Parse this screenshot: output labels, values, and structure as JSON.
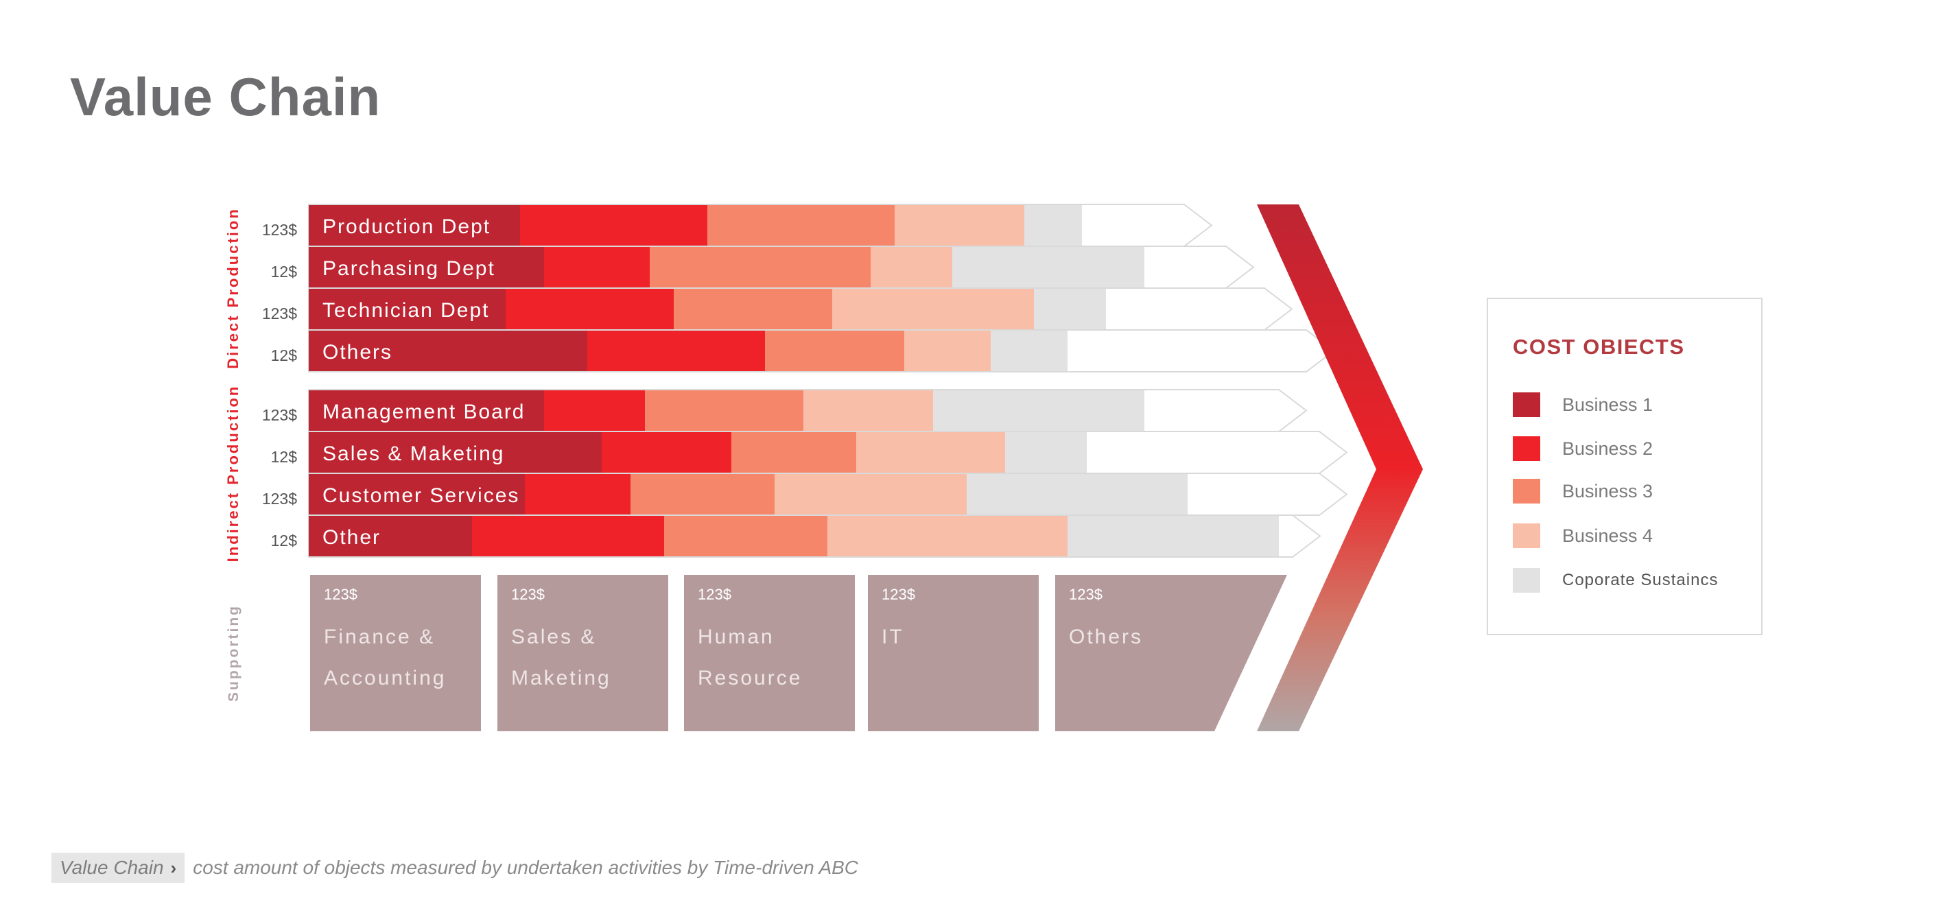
{
  "page": {
    "title": "Value Chain"
  },
  "footer": {
    "breadcrumb": "Value Chain",
    "breadcrumb_icon": "chevron-right-icon",
    "caption": "cost amount of objects measured by undertaken activities by Time-driven ABC"
  },
  "legend": {
    "title": "COST OBIECTS",
    "items": [
      {
        "label": "Business 1",
        "color": "#be2533"
      },
      {
        "label": "Business 2",
        "color": "#ee2228"
      },
      {
        "label": "Business 3",
        "color": "#f5866a"
      },
      {
        "label": "Business 4",
        "color": "#f9bea7"
      },
      {
        "label": "Coporate Sustaincs",
        "color": "#e2e2e3"
      }
    ]
  },
  "colors": {
    "segment_divider_business3": "#ef684d",
    "supporting_box": "#b59a9c",
    "group_label": "#e3262e",
    "supporting_label": "#b3a6a8",
    "arrow_gradient": [
      "#be2533",
      "#ec2228",
      "#d27566",
      "#b0a6a6"
    ]
  },
  "chart_data": {
    "type": "bar",
    "stacked": true,
    "orientation": "horizontal",
    "series_names": [
      "Business 1",
      "Business 2",
      "Business 3",
      "Business 4",
      "Coporate Sustaincs"
    ],
    "groups": [
      {
        "label": "Direct Production",
        "rows": [
          {
            "label": "Production Dept",
            "amount": "123$",
            "values": [
              22,
              19.5,
              19.5,
              13.5,
              6
            ]
          },
          {
            "label": "Parchasing Dept",
            "amount": "12$",
            "values": [
              24.5,
              11,
              23,
              8.5,
              20
            ]
          },
          {
            "label": "Technician Dept",
            "amount": "123$",
            "values": [
              20.5,
              17.5,
              16.5,
              21,
              7.5
            ]
          },
          {
            "label": "Others",
            "amount": "12$",
            "values": [
              29,
              18.5,
              14.5,
              9,
              8
            ]
          }
        ]
      },
      {
        "label": "Indirect Production",
        "rows": [
          {
            "label": "Management Board",
            "amount": "123$",
            "values": [
              24.5,
              10.5,
              16.5,
              13.5,
              22
            ]
          },
          {
            "label": "Sales & Maketing",
            "amount": "12$",
            "values": [
              30.5,
              13.5,
              13,
              15.5,
              8.5
            ]
          },
          {
            "label": "Customer Services",
            "amount": "123$",
            "values": [
              22.5,
              11,
              15,
              20,
              23
            ]
          },
          {
            "label": "Other",
            "amount": "12$",
            "values": [
              17,
              20,
              17,
              25,
              22
            ]
          }
        ]
      }
    ],
    "supporting": {
      "label": "Supporting",
      "items": [
        {
          "amount": "123$",
          "label_lines": [
            "Finance &",
            "Accounting"
          ]
        },
        {
          "amount": "123$",
          "label_lines": [
            "Sales &",
            "Maketing"
          ]
        },
        {
          "amount": "123$",
          "label_lines": [
            "Human",
            "Resource"
          ]
        },
        {
          "amount": "123$",
          "label_lines": [
            "IT"
          ]
        },
        {
          "amount": "123$",
          "label_lines": [
            "Others"
          ]
        }
      ]
    }
  }
}
